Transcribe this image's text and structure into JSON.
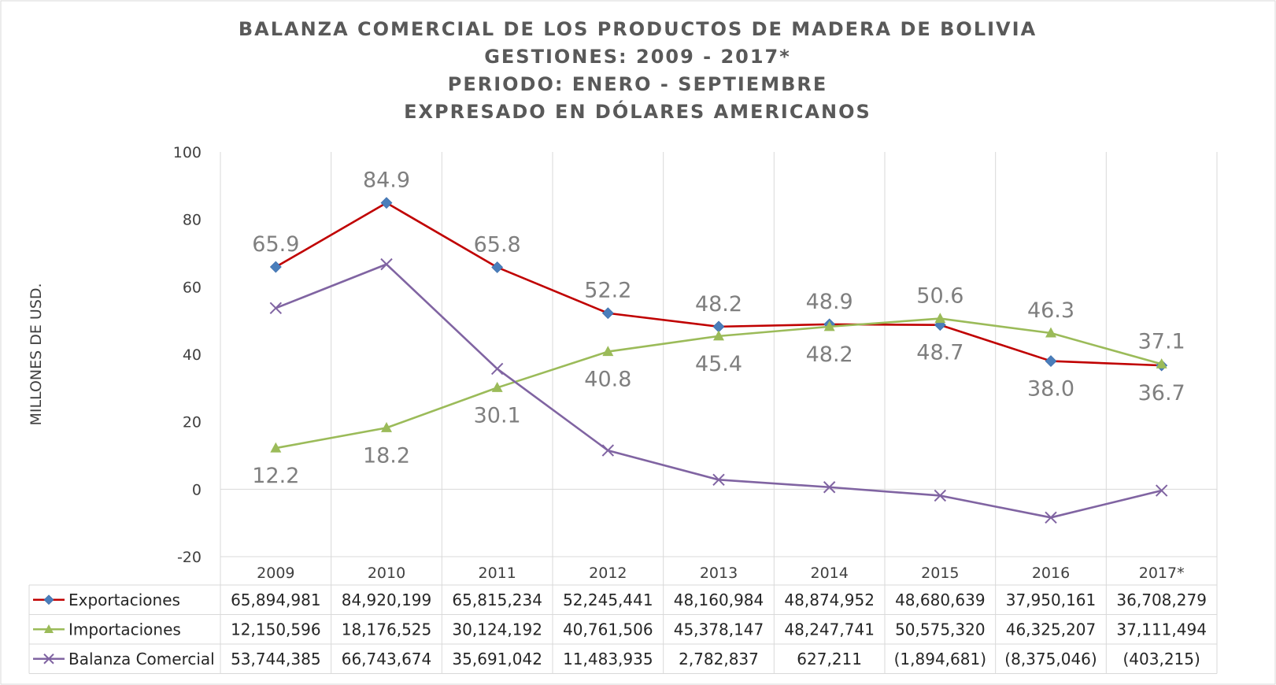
{
  "chart_data": {
    "type": "line",
    "title_lines": [
      "BALANZA COMERCIAL DE LOS PRODUCTOS DE MADERA DE BOLIVIA",
      "GESTIONES: 2009 - 2017*",
      "PERIODO: ENERO - SEPTIEMBRE",
      "EXPRESADO EN DÓLARES AMERICANOS"
    ],
    "ylabel": "MILLONES DE USD.",
    "ylim": [
      -20,
      100
    ],
    "yticks": [
      "-20",
      "0",
      "20",
      "40",
      "60",
      "80",
      "100"
    ],
    "ytick_values": [
      -20,
      0,
      20,
      40,
      60,
      80,
      100
    ],
    "grid": "vertical",
    "legend": "data-table",
    "categories": [
      "2009",
      "2010",
      "2011",
      "2012",
      "2013",
      "2014",
      "2015",
      "2016",
      "2017*"
    ],
    "series": [
      {
        "name": "Exportaciones",
        "color": "#c00000",
        "marker_color": "#4a7ebb",
        "marker": "diamond",
        "values": [
          65.9,
          84.9,
          65.8,
          52.2,
          48.2,
          48.9,
          48.7,
          38.0,
          36.7
        ],
        "labels": [
          "65.9",
          "84.9",
          "65.8",
          "52.2",
          "48.2",
          "48.9",
          "48.7",
          "38.0",
          "36.7"
        ],
        "table": [
          "65,894,981",
          "84,920,199",
          "65,815,234",
          "52,245,441",
          "48,160,984",
          "48,874,952",
          "48,680,639",
          "37,950,161",
          "36,708,279"
        ]
      },
      {
        "name": "Importaciones",
        "color": "#9bbb59",
        "marker_color": "#9bbb59",
        "marker": "triangle",
        "values": [
          12.2,
          18.2,
          30.1,
          40.8,
          45.4,
          48.2,
          50.6,
          46.3,
          37.1
        ],
        "labels": [
          "12.2",
          "18.2",
          "30.1",
          "40.8",
          "45.4",
          "48.2",
          "50.6",
          "46.3",
          "37.1"
        ],
        "table": [
          "12,150,596",
          "18,176,525",
          "30,124,192",
          "40,761,506",
          "45,378,147",
          "48,247,741",
          "50,575,320",
          "46,325,207",
          "37,111,494"
        ]
      },
      {
        "name": "Balanza Comercial",
        "color": "#8064a2",
        "marker_color": "#8064a2",
        "marker": "x",
        "values": [
          53.7,
          66.7,
          35.7,
          11.5,
          2.8,
          0.6,
          -1.9,
          -8.4,
          -0.4
        ],
        "labels": [],
        "table": [
          "53,744,385",
          "66,743,674",
          "35,691,042",
          "11,483,935",
          "2,782,837",
          "627,211",
          "(1,894,681)",
          "(8,375,046)",
          "(403,215)"
        ]
      }
    ]
  }
}
